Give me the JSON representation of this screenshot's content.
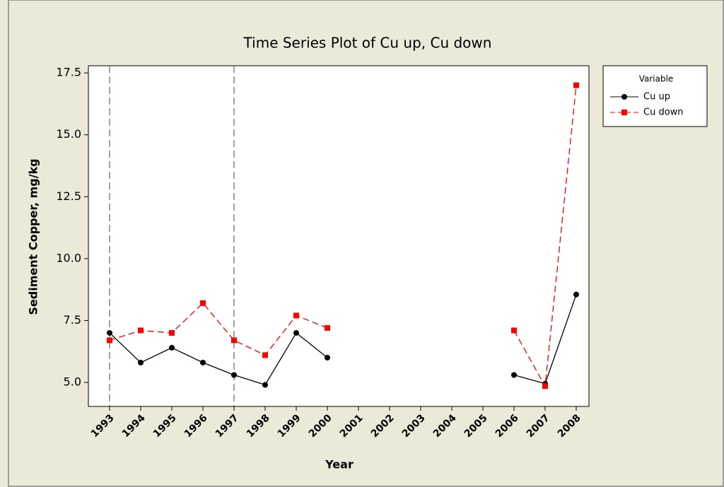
{
  "chart_data": {
    "type": "line",
    "title": "Time Series Plot of Cu up, Cu down",
    "x_label": "Year",
    "y_label": "Sediment Copper, mg/kg",
    "categories": [
      "1993",
      "1994",
      "1995",
      "1996",
      "1997",
      "1998",
      "1999",
      "2000",
      "2001",
      "2002",
      "2003",
      "2004",
      "2005",
      "2006",
      "2007",
      "2008"
    ],
    "series": [
      {
        "name": "Cu up",
        "color": "#000000",
        "marker": "circle",
        "dash": "solid",
        "values": [
          7.0,
          5.8,
          6.4,
          5.8,
          5.3,
          4.9,
          7.0,
          6.0,
          null,
          null,
          null,
          null,
          null,
          5.3,
          4.95,
          8.55
        ]
      },
      {
        "name": "Cu down",
        "color": "#ff0000",
        "marker": "square",
        "dash": "dashed",
        "values": [
          6.7,
          7.1,
          7.0,
          8.2,
          6.7,
          6.1,
          7.7,
          7.2,
          null,
          null,
          null,
          null,
          null,
          7.1,
          4.85,
          17.0
        ]
      }
    ],
    "ylim": [
      4.03,
      17.79
    ],
    "yticks": [
      {
        "value": 5,
        "label": "5.0"
      },
      7.5,
      {
        "value": 10,
        "label": "10.0"
      },
      12.5,
      {
        "value": 15,
        "label": "15.0"
      },
      17.5
    ],
    "x_reference_lines": [
      "1993",
      "1997"
    ],
    "legend_title": "Variable",
    "legend_position": "right"
  }
}
